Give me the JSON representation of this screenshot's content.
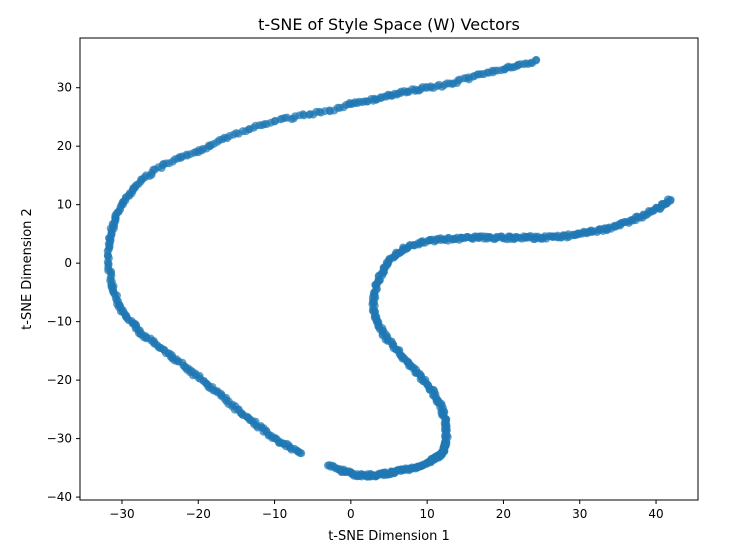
{
  "chart_data": {
    "type": "scatter",
    "title": "t-SNE of Style Space (W) Vectors",
    "xlabel": "t-SNE Dimension 1",
    "ylabel": "t-SNE Dimension 2",
    "xlim": [
      -35.5,
      45.5
    ],
    "ylim": [
      -40.5,
      38.5
    ],
    "xticks": [
      -30,
      -20,
      -10,
      0,
      10,
      20,
      30,
      40
    ],
    "yticks": [
      -40,
      -30,
      -20,
      -10,
      0,
      10,
      20,
      30
    ],
    "grid": false,
    "legend": "none",
    "point_color": "#1f77b4",
    "point_opacity": 0.7,
    "series": [
      {
        "x": [
          24.5,
          22,
          20,
          17.5,
          15,
          12.5,
          10,
          8,
          6,
          4,
          2,
          0,
          -3,
          -6,
          -9,
          -12,
          -15,
          -18,
          -20,
          -22.5,
          -25,
          -27,
          -28.5,
          -29.5,
          -30.5,
          -31,
          -31.5,
          -31.7,
          -31.7,
          -31.5,
          -31,
          -30.5,
          -29.5,
          -28.5,
          -27.5,
          -26,
          -24.5,
          -23,
          -21.5,
          -20,
          -18.5,
          -17,
          -15.5,
          -14,
          -12.5,
          -11,
          -9.5,
          -8,
          -6.5
        ],
        "y": [
          34.5,
          34,
          33,
          32.5,
          31.5,
          30.5,
          30,
          29.5,
          29,
          28.3,
          27.8,
          27.2,
          26,
          25.3,
          24.6,
          23.5,
          22.2,
          20.5,
          19.2,
          18,
          16.5,
          14.6,
          12.8,
          11,
          9,
          7,
          5,
          3,
          0,
          -3,
          -5,
          -7,
          -9,
          -10.5,
          -12,
          -13.5,
          -15,
          -16.5,
          -18,
          -19.5,
          -21,
          -22.5,
          -24.5,
          -26,
          -27.5,
          -29,
          -30.5,
          -31.5,
          -32.5
        ]
      },
      {
        "x": [
          42,
          41,
          40,
          38.5,
          37,
          35.5,
          34,
          32.5,
          31,
          29.5,
          28,
          26.5,
          25,
          23.5,
          22,
          20.5,
          19,
          17.5,
          16,
          14.5,
          13,
          11.5,
          10,
          8.5,
          7,
          6,
          5,
          4.3,
          3.8,
          3.3,
          3,
          3,
          3.3,
          3.8,
          4.5,
          5.5,
          6.5,
          7.5,
          8.5,
          9.5,
          10.5,
          11.2,
          11.8,
          12.2,
          12.5,
          12.5,
          12.5,
          12.3,
          12,
          11.5,
          11,
          10.3,
          9.5,
          8.5,
          7.5,
          6.5,
          5.5,
          4.5,
          3.5,
          2.5,
          1.5,
          0.5,
          -0.5,
          -1.5,
          -3
        ],
        "y": [
          11,
          10,
          9.2,
          8.2,
          7.5,
          6.6,
          6,
          5.6,
          5.3,
          4.9,
          4.6,
          4.5,
          4.3,
          4.4,
          4.4,
          4.3,
          4.3,
          4.4,
          4.3,
          4.2,
          4.1,
          4,
          3.7,
          3.2,
          2.5,
          1.5,
          0.5,
          -1,
          -2.5,
          -4,
          -6,
          -8,
          -9.5,
          -11,
          -12.5,
          -14,
          -15.5,
          -17,
          -18.5,
          -20,
          -21.5,
          -23,
          -24.5,
          -26,
          -27.5,
          -29,
          -30.5,
          -31.5,
          -32.5,
          -33,
          -33.5,
          -34,
          -34.5,
          -35,
          -35.3,
          -35.5,
          -35.8,
          -36,
          -36.2,
          -36.3,
          -36.3,
          -36.2,
          -35.8,
          -35.3,
          -34.6
        ]
      }
    ]
  }
}
